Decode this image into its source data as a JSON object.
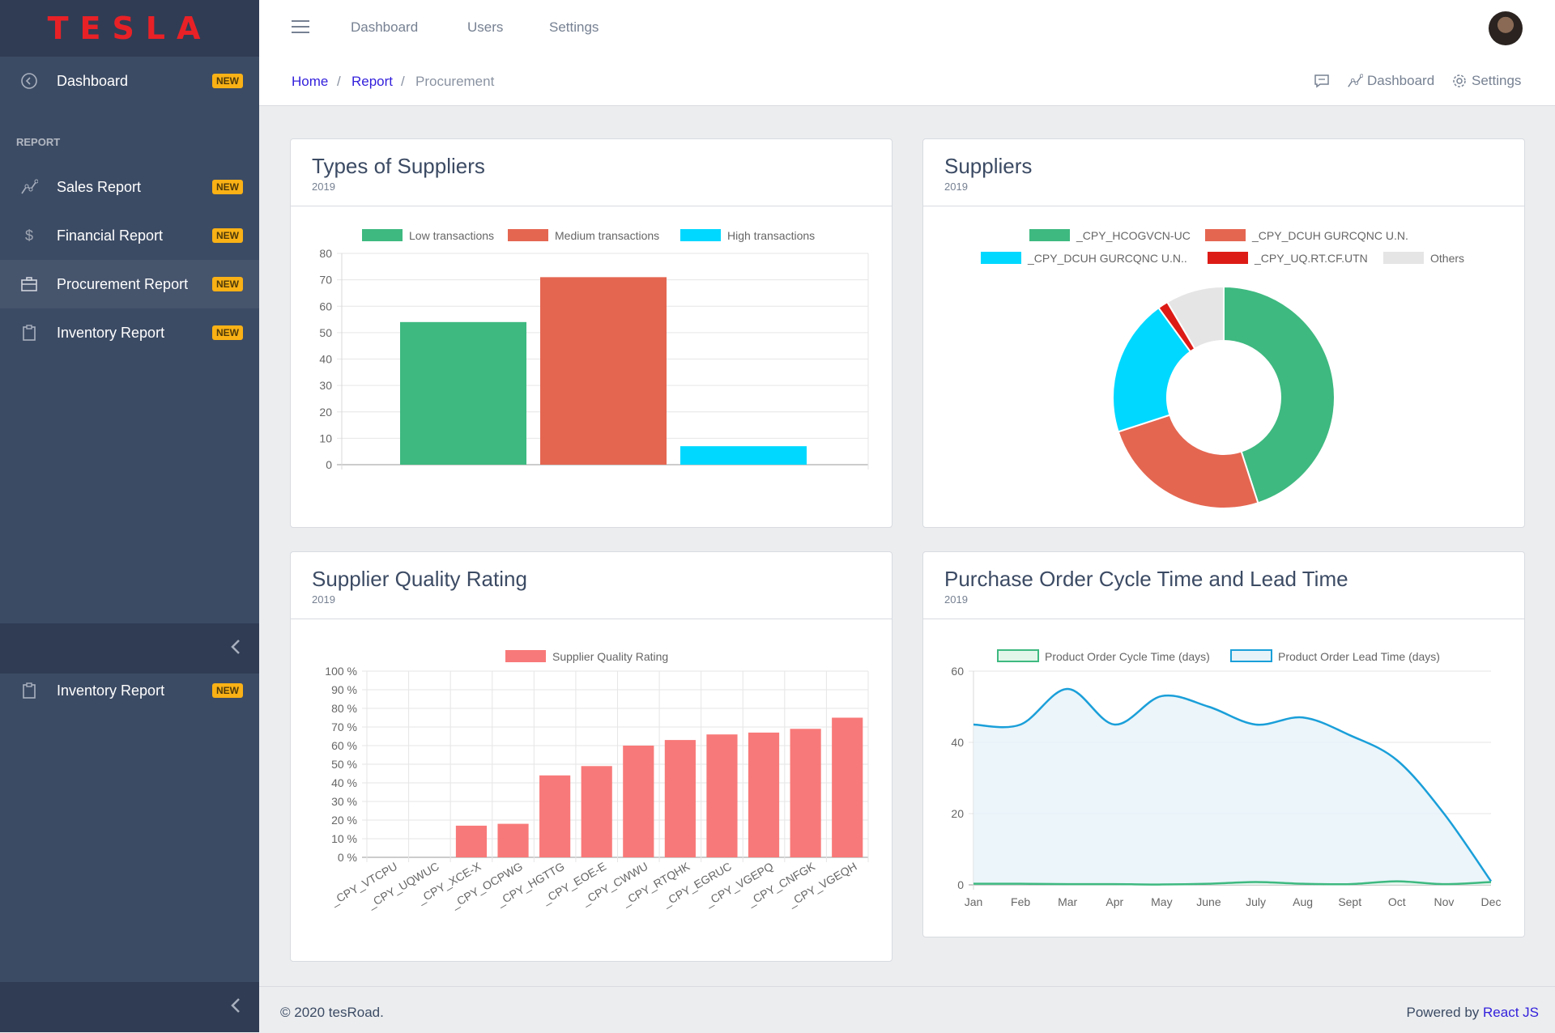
{
  "brand": {
    "logo": "TESLA",
    "color": "#e82127"
  },
  "sidebar": {
    "dashboard": {
      "label": "Dashboard",
      "badge": "NEW",
      "icon": "speedometer-icon"
    },
    "section_title": "REPORT",
    "items": [
      {
        "label": "Sales Report",
        "badge": "NEW",
        "icon": "chart-line-icon"
      },
      {
        "label": "Financial Report",
        "badge": "NEW",
        "icon": "dollar-icon"
      },
      {
        "label": "Procurement Report",
        "badge": "NEW",
        "icon": "briefcase-icon",
        "active": true
      },
      {
        "label": "Inventory Report",
        "badge": "NEW",
        "icon": "clipboard-icon"
      }
    ],
    "extra_item": {
      "label": "Inventory Report",
      "badge": "NEW",
      "icon": "clipboard-icon"
    }
  },
  "header": {
    "links": [
      "Dashboard",
      "Users",
      "Settings"
    ]
  },
  "breadcrumb": {
    "home": "Home",
    "report": "Report",
    "current": "Procurement"
  },
  "subheader_right": {
    "dashboard": "Dashboard",
    "settings": "Settings"
  },
  "cards": {
    "types": {
      "title": "Types of Suppliers",
      "subtitle": "2019"
    },
    "suppliers": {
      "title": "Suppliers",
      "subtitle": "2019"
    },
    "quality": {
      "title": "Supplier Quality Rating",
      "subtitle": "2019"
    },
    "po": {
      "title": "Purchase Order Cycle Time and Lead Time",
      "subtitle": "2019"
    }
  },
  "chart_data": [
    {
      "type": "bar",
      "title": "Types of Suppliers",
      "series": [
        {
          "name": "Low transactions",
          "values": [
            54
          ],
          "color": "#3eb980"
        },
        {
          "name": "Medium transactions",
          "values": [
            71
          ],
          "color": "#e46651"
        },
        {
          "name": "High transactions",
          "values": [
            7
          ],
          "color": "#00d8ff"
        }
      ],
      "ylim": [
        0,
        80
      ],
      "yticks": [
        0,
        10,
        20,
        30,
        40,
        50,
        60,
        70,
        80
      ],
      "legend": "top",
      "grid": true
    },
    {
      "type": "pie",
      "title": "Suppliers",
      "donut": true,
      "slices": [
        {
          "label": "_CPY_HCOGVCN-UC",
          "value": 45,
          "color": "#3eb980"
        },
        {
          "label": "_CPY_DCUH GURCQNC U.N.",
          "value": 25,
          "color": "#e46651"
        },
        {
          "label": "_CPY_DCUH GURCQNC U.N..",
          "value": 20,
          "color": "#00d8ff"
        },
        {
          "label": "_CPY_UQ.RT.CF.UTN",
          "value": 1.5,
          "color": "#dd1b16"
        },
        {
          "label": "Others",
          "value": 8.5,
          "color": "#e5e5e5"
        }
      ],
      "legend": "top"
    },
    {
      "type": "bar",
      "title": "Supplier Quality Rating",
      "categories": [
        "_CPY_VTCPU",
        "_CPY_UQWUC",
        "_CPY_XCE-X",
        "_CPY_OCPWG",
        "_CPY_HGTTG",
        "_CPY_EOE-E",
        "_CPY_CWWU",
        "_CPY_RTQHK",
        "_CPY_EGRUC",
        "_CPY_VGEPQ",
        "_CPY_CNFGK",
        "_CPY_VGEQH"
      ],
      "series": [
        {
          "name": "Supplier Quality Rating",
          "values": [
            0,
            0,
            17,
            18,
            44,
            49,
            60,
            63,
            66,
            67,
            69,
            75
          ],
          "color": "#f87979"
        }
      ],
      "ylim": [
        0,
        100
      ],
      "yticks": [
        "0 %",
        "10 %",
        "20 %",
        "30 %",
        "40 %",
        "50 %",
        "60 %",
        "70 %",
        "80 %",
        "90 %",
        "100 %"
      ],
      "legend": "top",
      "grid": true
    },
    {
      "type": "area",
      "title": "Purchase Order Cycle Time and Lead Time",
      "categories": [
        "Jan",
        "Feb",
        "Mar",
        "Apr",
        "May",
        "June",
        "July",
        "Aug",
        "Sept",
        "Oct",
        "Nov",
        "Dec"
      ],
      "series": [
        {
          "name": "Product Order Cycle Time (days)",
          "values": [
            0.3,
            0.3,
            0.2,
            0.2,
            0.1,
            0.3,
            0.8,
            0.3,
            0.2,
            1,
            0.2,
            0.8
          ],
          "color": "#3eb980",
          "fill": "#e2f6ea"
        },
        {
          "name": "Product Order Lead Time (days)",
          "values": [
            45,
            45,
            55,
            45,
            53,
            50,
            45,
            47,
            42,
            35,
            20,
            1
          ],
          "color": "#1a9fd9",
          "fill": "#e6f3f9"
        }
      ],
      "ylim": [
        0,
        60
      ],
      "yticks": [
        0,
        20,
        40,
        60
      ],
      "legend": "top",
      "grid": true
    }
  ],
  "footer": {
    "copyright": "© 2020 tesRoad.",
    "powered_prefix": "Powered by",
    "powered_link": "React JS"
  }
}
